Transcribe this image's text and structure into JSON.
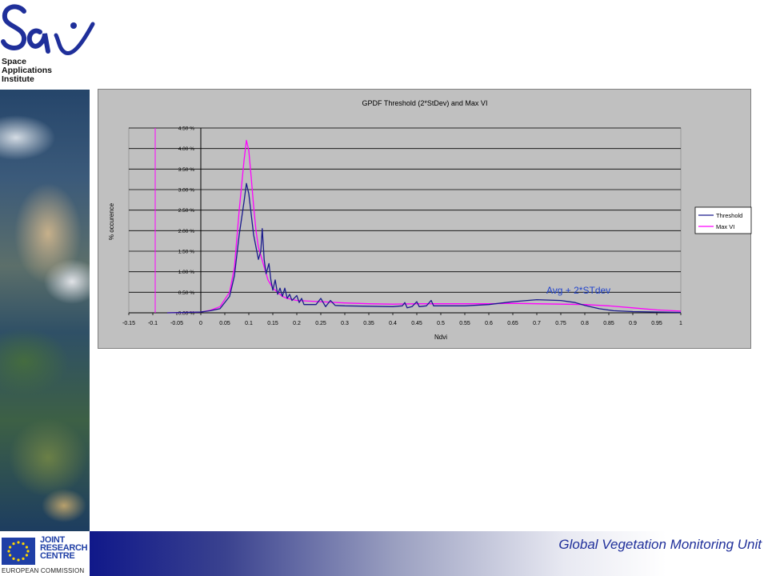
{
  "logo": {
    "mark": "SAI",
    "lines": [
      "Space",
      "Applications",
      "Institute"
    ]
  },
  "footer": {
    "unit_title": "Global Vegetation Monitoring Unit",
    "jrc_lines": [
      "JOINT",
      "RESEARCH",
      "CENTRE"
    ],
    "ec_label": "EUROPEAN COMMISSION"
  },
  "colors": {
    "threshold": "#1a1a8c",
    "maxvi": "#ff00ff",
    "plot_bg": "#c0c0c0",
    "annotation": "#2244cc"
  },
  "chart_data": {
    "type": "line",
    "title": "GPDF Threshold (2*StDev) and Max VI",
    "xlabel": "Ndvi",
    "ylabel": "% occurence",
    "xlim": [
      -0.15,
      1
    ],
    "ylim": [
      0,
      4.5
    ],
    "grid": true,
    "legend": "right",
    "x_ticks": [
      "-0.15",
      "-0.1",
      "-0.05",
      "0",
      "0.05",
      "0.1",
      "0.15",
      "0.2",
      "0.25",
      "0.3",
      "0.35",
      "0.4",
      "0.45",
      "0.5",
      "0.55",
      "0.6",
      "0.65",
      "0.7",
      "0.75",
      "0.8",
      "0.85",
      "0.9",
      "0.95",
      "1"
    ],
    "y_ticks": [
      "0.00 %",
      "0.50 %",
      "1.00 %",
      "1.50 %",
      "2.00 %",
      "2.50 %",
      "3.00 %",
      "3.50 %",
      "4.00 %",
      "4.50 %"
    ],
    "vline_x": -0.095,
    "annotation": {
      "text": "Avg + 2*STdev",
      "x": 0.72,
      "y": 0.55
    },
    "series": [
      {
        "name": "Threshold",
        "points": [
          [
            -0.07,
            0
          ],
          [
            -0.03,
            0.01
          ],
          [
            0.0,
            0.02
          ],
          [
            0.02,
            0.05
          ],
          [
            0.04,
            0.1
          ],
          [
            0.06,
            0.4
          ],
          [
            0.07,
            0.9
          ],
          [
            0.08,
            1.9
          ],
          [
            0.09,
            2.7
          ],
          [
            0.095,
            3.15
          ],
          [
            0.1,
            2.9
          ],
          [
            0.105,
            2.4
          ],
          [
            0.11,
            1.9
          ],
          [
            0.115,
            1.6
          ],
          [
            0.12,
            1.3
          ],
          [
            0.125,
            1.5
          ],
          [
            0.128,
            2.05
          ],
          [
            0.132,
            1.3
          ],
          [
            0.136,
            0.95
          ],
          [
            0.142,
            1.2
          ],
          [
            0.146,
            0.8
          ],
          [
            0.15,
            0.55
          ],
          [
            0.155,
            0.8
          ],
          [
            0.16,
            0.45
          ],
          [
            0.165,
            0.6
          ],
          [
            0.17,
            0.4
          ],
          [
            0.175,
            0.6
          ],
          [
            0.18,
            0.35
          ],
          [
            0.185,
            0.45
          ],
          [
            0.19,
            0.3
          ],
          [
            0.2,
            0.42
          ],
          [
            0.205,
            0.25
          ],
          [
            0.21,
            0.35
          ],
          [
            0.215,
            0.2
          ],
          [
            0.24,
            0.2
          ],
          [
            0.25,
            0.35
          ],
          [
            0.26,
            0.15
          ],
          [
            0.27,
            0.3
          ],
          [
            0.28,
            0.18
          ],
          [
            0.3,
            0.17
          ],
          [
            0.4,
            0.15
          ],
          [
            0.42,
            0.17
          ],
          [
            0.425,
            0.25
          ],
          [
            0.43,
            0.12
          ],
          [
            0.44,
            0.15
          ],
          [
            0.45,
            0.27
          ],
          [
            0.455,
            0.15
          ],
          [
            0.47,
            0.17
          ],
          [
            0.48,
            0.3
          ],
          [
            0.485,
            0.17
          ],
          [
            0.55,
            0.17
          ],
          [
            0.6,
            0.2
          ],
          [
            0.65,
            0.27
          ],
          [
            0.7,
            0.32
          ],
          [
            0.75,
            0.3
          ],
          [
            0.78,
            0.25
          ],
          [
            0.8,
            0.18
          ],
          [
            0.83,
            0.1
          ],
          [
            0.86,
            0.05
          ],
          [
            0.9,
            0.03
          ],
          [
            0.95,
            0.02
          ],
          [
            1.0,
            0.01
          ]
        ]
      },
      {
        "name": "Max VI",
        "points": [
          [
            -0.07,
            0
          ],
          [
            -0.03,
            0.01
          ],
          [
            0.0,
            0.02
          ],
          [
            0.02,
            0.06
          ],
          [
            0.04,
            0.15
          ],
          [
            0.06,
            0.5
          ],
          [
            0.07,
            1.1
          ],
          [
            0.08,
            2.5
          ],
          [
            0.09,
            3.7
          ],
          [
            0.095,
            4.2
          ],
          [
            0.1,
            3.95
          ],
          [
            0.105,
            3.3
          ],
          [
            0.11,
            2.6
          ],
          [
            0.115,
            2.0
          ],
          [
            0.12,
            1.6
          ],
          [
            0.13,
            1.2
          ],
          [
            0.14,
            0.8
          ],
          [
            0.15,
            0.6
          ],
          [
            0.16,
            0.5
          ],
          [
            0.17,
            0.4
          ],
          [
            0.18,
            0.35
          ],
          [
            0.2,
            0.3
          ],
          [
            0.25,
            0.27
          ],
          [
            0.3,
            0.24
          ],
          [
            0.35,
            0.22
          ],
          [
            0.4,
            0.21
          ],
          [
            0.45,
            0.22
          ],
          [
            0.5,
            0.22
          ],
          [
            0.55,
            0.22
          ],
          [
            0.6,
            0.22
          ],
          [
            0.65,
            0.23
          ],
          [
            0.7,
            0.22
          ],
          [
            0.75,
            0.21
          ],
          [
            0.8,
            0.2
          ],
          [
            0.85,
            0.17
          ],
          [
            0.9,
            0.12
          ],
          [
            0.95,
            0.07
          ],
          [
            1.0,
            0.04
          ]
        ]
      }
    ]
  }
}
